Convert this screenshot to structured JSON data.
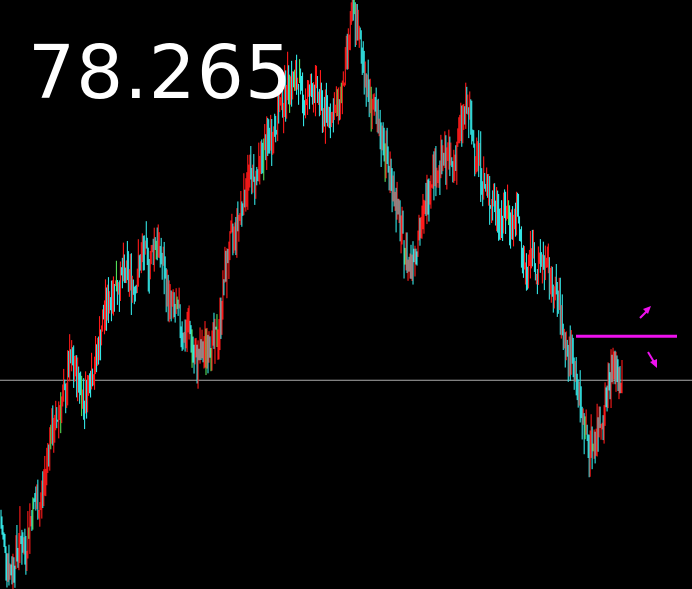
{
  "price_display": "78.265",
  "chart_data": {
    "type": "line",
    "instrument_price": "78.265",
    "title": "",
    "xlabel": "",
    "ylabel": "",
    "grid": false,
    "legend": "none",
    "ylim": [
      -9.5,
      17.3
    ],
    "x": [
      0,
      1,
      2,
      3,
      4,
      5,
      6,
      7,
      8,
      9,
      10,
      11,
      12,
      13,
      14,
      15,
      16,
      17,
      18,
      19,
      20,
      21,
      22,
      23,
      24,
      25,
      26,
      27,
      28,
      29,
      30,
      31,
      32,
      33,
      34,
      35,
      36,
      37,
      38,
      39,
      40,
      41,
      42,
      43,
      44,
      45,
      46,
      47,
      48,
      49,
      50,
      51,
      52,
      53,
      54,
      55,
      56,
      57,
      58,
      59,
      60,
      61,
      62,
      63,
      64,
      65,
      66,
      67,
      68,
      69,
      70,
      71,
      72,
      73,
      74,
      75,
      76,
      77,
      78,
      79,
      80,
      81,
      82,
      83,
      84,
      85,
      86,
      87,
      88,
      89,
      90,
      91,
      92,
      93,
      94,
      95,
      96,
      97,
      98,
      99,
      100,
      101,
      102,
      103,
      104,
      105,
      106,
      107,
      108,
      109,
      110,
      111,
      112,
      113,
      114,
      115,
      116,
      117,
      118,
      119,
      120,
      121,
      122,
      123,
      124,
      125
    ],
    "series": [
      {
        "values": [
          -6.4,
          -7.6,
          -8.7,
          -8.2,
          -7.1,
          -7.8,
          -6.4,
          -5.5,
          -5.8,
          -4.4,
          -2.5,
          -2.2,
          -1.2,
          -0.8,
          0.9,
          0.4,
          -0.2,
          -1.0,
          0.2,
          0.6,
          1.9,
          3.1,
          3.7,
          4.3,
          4.4,
          4.9,
          4.7,
          4.2,
          5.3,
          5.8,
          5.2,
          6.4,
          6.0,
          4.8,
          3.5,
          3.1,
          2.9,
          1.9,
          2.5,
          0.8,
          1.1,
          1.3,
          1.8,
          1.6,
          2.2,
          4.5,
          5.9,
          6.6,
          7.4,
          8.5,
          9.4,
          9.1,
          9.6,
          10.5,
          10.9,
          11.3,
          12.3,
          12.8,
          13.7,
          13.4,
          13.6,
          12.5,
          13.1,
          13.3,
          12.9,
          12.1,
          12.3,
          12.0,
          12.6,
          13.4,
          15.4,
          16.9,
          15.7,
          14.5,
          13.0,
          12.4,
          11.2,
          10.9,
          9.7,
          8.8,
          7.5,
          6.2,
          5.3,
          5.7,
          6.5,
          7.3,
          8.5,
          9.8,
          9.4,
          10.0,
          10.2,
          9.6,
          10.9,
          11.9,
          12.4,
          10.9,
          10.5,
          9.0,
          8.5,
          8.1,
          7.6,
          7.4,
          7.8,
          6.9,
          7.6,
          5.3,
          4.8,
          6.2,
          4.7,
          5.6,
          5.0,
          4.2,
          3.7,
          2.5,
          1.1,
          1.2,
          -0.3,
          -1.8,
          -2.7,
          -3.1,
          -2.2,
          -1.7,
          -0.5,
          0.6,
          0.3,
          -0.1
        ],
        "color_up": "#ff1a1a",
        "color_down": "#33e5e5",
        "color_neutral": "#55dd55"
      }
    ],
    "reference_line": {
      "value": 0,
      "color": "#aaaaaa"
    },
    "level_marker": {
      "value": 2.0,
      "color": "#ee11ee"
    },
    "direction_arrows": {
      "color": "#ee11ee",
      "icons": [
        "arrow-up-right-icon",
        "arrow-down-right-icon"
      ]
    }
  }
}
